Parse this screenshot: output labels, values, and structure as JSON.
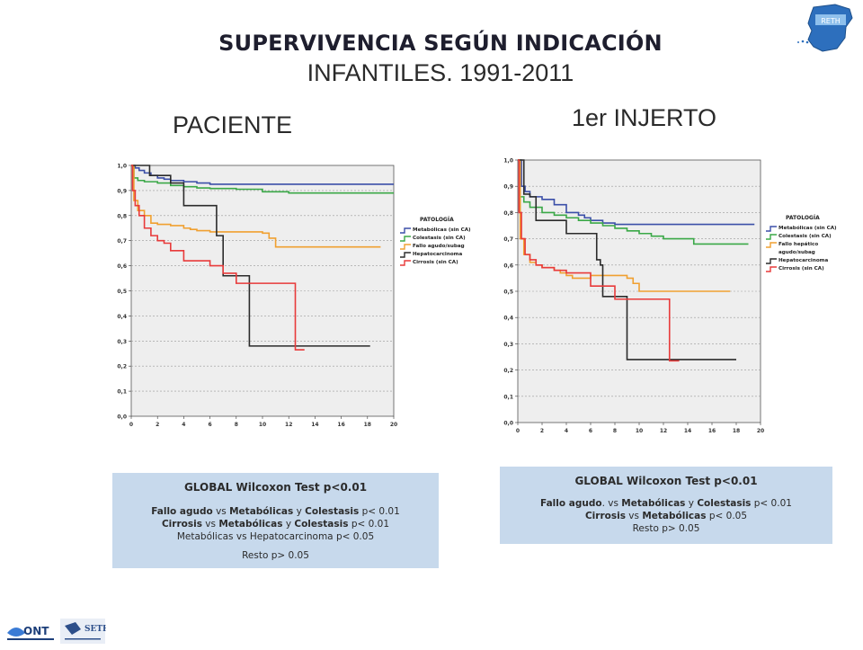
{
  "header": {
    "title": "SUPERVIVENCIA SEGÚN INDICACIÓN",
    "subtitle": "INFANTILES. 1991-2011",
    "logo_text": "RETH"
  },
  "panels": [
    {
      "label": "PACIENTE"
    },
    {
      "label": "1er INJERTO"
    }
  ],
  "legend": {
    "title": "PATOLOGÍA",
    "items_a": [
      "Metabólicas (sin CA)",
      "Colestasis (sin CA)",
      "Fallo agudo/subag",
      "Hepatocarcinoma",
      "Cirrosis (sin CA)"
    ],
    "items_b": [
      "Metabólicas (sin CA)",
      "Colestasis (sin CA)",
      "Fallo hepático",
      "agudo/subag",
      "Hepatocarcinoma",
      "Cirrosis (sin CA)"
    ]
  },
  "colors": {
    "metabolicas": "#3b4fa8",
    "colestasis": "#3aa847",
    "fallo": "#f0a030",
    "hepatocarcinoma": "#2b2b2b",
    "cirrosis": "#e83a3a",
    "plot_bg": "#eeeeee",
    "stats_bg": "#c7d9ec"
  },
  "chart_data": [
    {
      "type": "line",
      "title": "PACIENTE",
      "xlim": [
        0,
        20
      ],
      "ylim": [
        0,
        1
      ],
      "x_ticks": [
        "0",
        "2",
        "4",
        "6",
        "8",
        "10",
        "12",
        "14",
        "16",
        "18",
        "20"
      ],
      "y_ticks": [
        "0,0",
        "0,1",
        "0,2",
        "0,3",
        "0,4",
        "0,5",
        "0,6",
        "0,7",
        "0,8",
        "0,9",
        "1,0"
      ],
      "grid": true,
      "legend_position": "right",
      "series": [
        {
          "name": "Metabólicas (sin CA)",
          "x": [
            0,
            0.3,
            0.6,
            1,
            1.5,
            2,
            2.5,
            3,
            4,
            5,
            6,
            20
          ],
          "y": [
            1,
            0.99,
            0.98,
            0.97,
            0.96,
            0.95,
            0.945,
            0.94,
            0.935,
            0.93,
            0.925,
            0.925
          ]
        },
        {
          "name": "Colestasis (sin CA)",
          "x": [
            0,
            0.2,
            0.5,
            1,
            2,
            3,
            4,
            5,
            6,
            8,
            10,
            12,
            20
          ],
          "y": [
            1,
            0.95,
            0.94,
            0.935,
            0.93,
            0.92,
            0.915,
            0.91,
            0.908,
            0.905,
            0.895,
            0.89,
            0.89
          ]
        },
        {
          "name": "Fallo agudo/subag",
          "x": [
            0,
            0.2,
            0.5,
            1,
            1.5,
            2,
            3,
            4,
            4.5,
            5,
            6,
            8,
            10,
            10.5,
            11,
            13,
            19
          ],
          "y": [
            1,
            0.86,
            0.82,
            0.8,
            0.77,
            0.765,
            0.76,
            0.75,
            0.745,
            0.74,
            0.735,
            0.735,
            0.73,
            0.71,
            0.675,
            0.675,
            0.675
          ]
        },
        {
          "name": "Hepatocarcinoma",
          "x": [
            0,
            1.4,
            3,
            4,
            6.5,
            7,
            9,
            13,
            18.2
          ],
          "y": [
            1,
            0.96,
            0.93,
            0.84,
            0.72,
            0.56,
            0.28,
            0.28,
            0.28
          ]
        },
        {
          "name": "Cirrosis (sin CA)",
          "x": [
            0,
            0.1,
            0.3,
            0.6,
            1,
            1.5,
            2,
            2.5,
            3,
            4,
            5,
            6,
            7,
            8,
            9,
            10,
            11,
            12.5,
            13.2
          ],
          "y": [
            1,
            0.9,
            0.84,
            0.8,
            0.75,
            0.72,
            0.7,
            0.69,
            0.66,
            0.62,
            0.62,
            0.6,
            0.57,
            0.53,
            0.53,
            0.53,
            0.53,
            0.265,
            0.265
          ]
        }
      ]
    },
    {
      "type": "line",
      "title": "1er INJERTO",
      "xlim": [
        0,
        20
      ],
      "ylim": [
        0,
        1
      ],
      "x_ticks": [
        "0",
        "2",
        "4",
        "6",
        "8",
        "10",
        "12",
        "14",
        "16",
        "18",
        "20"
      ],
      "y_ticks": [
        "0,0",
        "0,1",
        "0,2",
        "0,3",
        "0,4",
        "0,5",
        "0,6",
        "0,7",
        "0,8",
        "0,9",
        "1,0"
      ],
      "grid": true,
      "legend_position": "right",
      "series": [
        {
          "name": "Metabólicas (sin CA)",
          "x": [
            0,
            0.3,
            0.6,
            1,
            2,
            3,
            4,
            5,
            5.5,
            6,
            7,
            8,
            9,
            19.5
          ],
          "y": [
            1,
            0.9,
            0.88,
            0.86,
            0.85,
            0.83,
            0.8,
            0.79,
            0.78,
            0.77,
            0.76,
            0.755,
            0.755,
            0.755
          ]
        },
        {
          "name": "Colestasis (sin CA)",
          "x": [
            0,
            0.2,
            0.5,
            1,
            2,
            3,
            4,
            5,
            6,
            7,
            8,
            9,
            10,
            11,
            12,
            14,
            14.5,
            19
          ],
          "y": [
            1,
            0.86,
            0.84,
            0.82,
            0.8,
            0.79,
            0.78,
            0.77,
            0.76,
            0.75,
            0.74,
            0.73,
            0.72,
            0.71,
            0.7,
            0.7,
            0.68,
            0.68
          ]
        },
        {
          "name": "Fallo hepático agudo/subag",
          "x": [
            0,
            0.2,
            0.5,
            1,
            1.5,
            2,
            2.5,
            3,
            3.5,
            4,
            4.5,
            5,
            6,
            8,
            9,
            9.5,
            10,
            17.5
          ],
          "y": [
            1,
            0.7,
            0.64,
            0.61,
            0.6,
            0.59,
            0.59,
            0.58,
            0.57,
            0.56,
            0.55,
            0.55,
            0.56,
            0.56,
            0.55,
            0.53,
            0.5,
            0.5
          ]
        },
        {
          "name": "Hepatocarcinoma",
          "x": [
            0,
            0.5,
            1,
            1.5,
            3,
            4,
            5,
            6,
            6.5,
            6.8,
            7,
            8,
            9,
            12,
            18
          ],
          "y": [
            1,
            0.87,
            0.86,
            0.77,
            0.77,
            0.72,
            0.72,
            0.72,
            0.62,
            0.6,
            0.48,
            0.48,
            0.24,
            0.24,
            0.24
          ]
        },
        {
          "name": "Cirrosis (sin CA)",
          "x": [
            0,
            0.1,
            0.3,
            0.6,
            1,
            1.5,
            2,
            3,
            4,
            5,
            6,
            7,
            8,
            12.5,
            13.3
          ],
          "y": [
            1,
            0.8,
            0.7,
            0.64,
            0.62,
            0.6,
            0.59,
            0.58,
            0.57,
            0.57,
            0.52,
            0.52,
            0.47,
            0.235,
            0.235
          ]
        }
      ]
    }
  ],
  "stats_a": {
    "heading": "GLOBAL Wilcoxon Test p<0.01",
    "l1_a": "Fallo agudo",
    "l1_b": " vs ",
    "l1_c": "Metabólicas",
    "l1_d": " y ",
    "l1_e": "Colestasis",
    "l1_f": " p< 0.01",
    "l2_a": "Cirrosis",
    "l2_b": " vs ",
    "l2_c": "Metabólicas",
    "l2_d": " y ",
    "l2_e": "Colestasis",
    "l2_f": " p< 0.01",
    "l3": "Metabólicas vs Hepatocarcinoma p< 0.05",
    "l4": "Resto p> 0.05"
  },
  "stats_b": {
    "heading": "GLOBAL Wilcoxon Test p<0.01",
    "l1_a": "Fallo agudo",
    "l1_b": ". vs ",
    "l1_c": "Metabólicas",
    "l1_d": " y ",
    "l1_e": "Colestasis",
    "l1_f": "  p< 0.01",
    "l2_a": "Cirrosis",
    "l2_b": " vs ",
    "l2_c": "Metabólicas",
    "l2_d": "  p< 0.05",
    "l3": "Resto p> 0.05"
  },
  "footer": {
    "logo1": "ONT",
    "logo2": "SETH"
  }
}
